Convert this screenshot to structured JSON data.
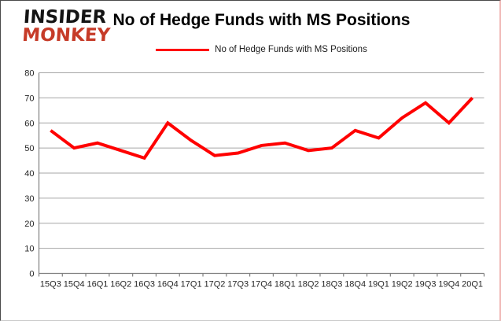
{
  "logo": {
    "line1": "INSIDER",
    "line2": "MONKEY"
  },
  "header": {
    "title": "No of Hedge Funds with MS Positions"
  },
  "legend": {
    "label": "No of Hedge Funds with MS Positions",
    "line_color": "#ff0000"
  },
  "chart_data": {
    "type": "line",
    "title": "No of Hedge Funds with MS Positions",
    "categories": [
      "15Q3",
      "15Q4",
      "16Q1",
      "16Q2",
      "16Q3",
      "16Q4",
      "17Q1",
      "17Q2",
      "17Q3",
      "17Q4",
      "18Q1",
      "18Q2",
      "18Q3",
      "18Q4",
      "19Q1",
      "19Q2",
      "19Q3",
      "19Q4",
      "20Q1"
    ],
    "series": [
      {
        "name": "No of Hedge Funds with MS Positions",
        "color": "#ff0000",
        "values": [
          57,
          50,
          52,
          49,
          46,
          60,
          53,
          47,
          48,
          51,
          52,
          49,
          50,
          57,
          54,
          62,
          68,
          60,
          70
        ]
      }
    ],
    "xlabel": "",
    "ylabel": "",
    "ylim": [
      0,
      80
    ],
    "yticks": [
      0,
      10,
      20,
      30,
      40,
      50,
      60,
      70,
      80
    ],
    "grid": true,
    "legend_position": "top",
    "colors": {
      "gridline": "#a6a6a6",
      "axis": "#808080",
      "tick_label": "#262626"
    }
  }
}
